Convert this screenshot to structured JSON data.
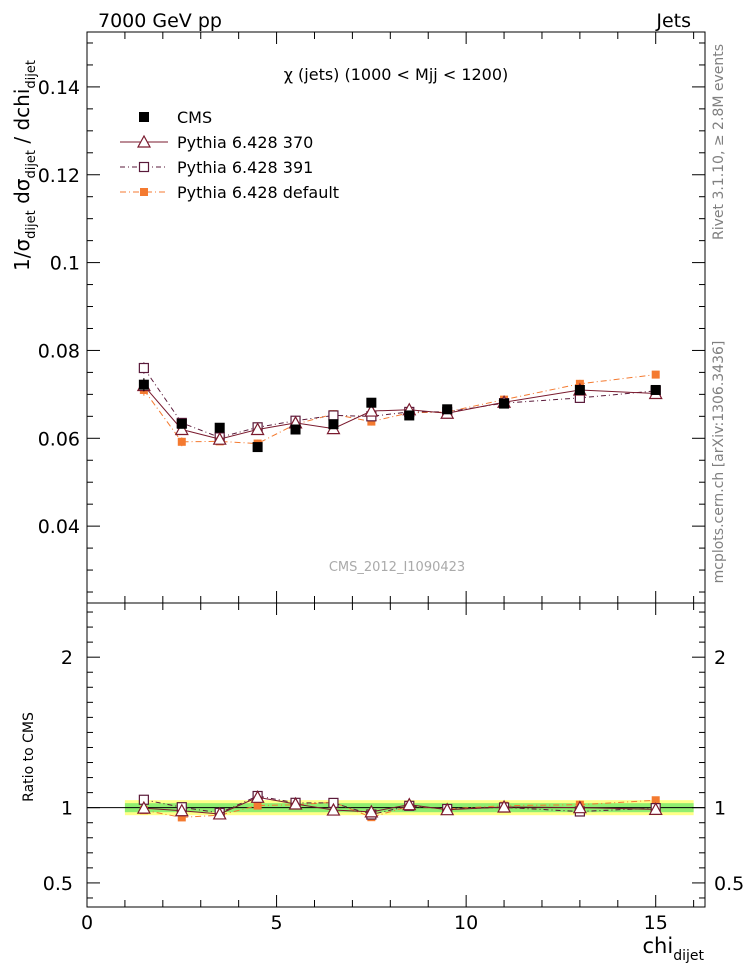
{
  "header": {
    "left": "7000 GeV pp",
    "right": "Jets"
  },
  "side_labels": {
    "rivet": "Rivet 3.1.10, ≥ 2.8M events",
    "mcplots": "mcplots.cern.ch [arXiv:1306.3436]"
  },
  "chart_data": {
    "type": "scatter",
    "title": "χ (jets) (1000 < Mjj < 1200)",
    "watermark": "CMS_2012_I1090423",
    "xlabel": "chi",
    "xlabel_sub": "dijet",
    "ylabel_main": {
      "parts": [
        {
          "t": "1/σ",
          "sub": false
        },
        {
          "t": "dijet",
          "sub": true
        },
        {
          "t": " dσ",
          "sub": false
        },
        {
          "t": "dijet",
          "sub": true
        },
        {
          "t": " / dchi",
          "sub": false
        },
        {
          "t": "dijet",
          "sub": true
        }
      ]
    },
    "ylabel_ratio": "Ratio to CMS",
    "xlim": [
      0,
      16.3
    ],
    "ylim_main": [
      0.0225,
      0.1525
    ],
    "ylim_ratio": [
      0.34,
      2.36
    ],
    "xticks": [
      0,
      5,
      10,
      15
    ],
    "yticks_main": [
      0.04,
      0.06,
      0.08,
      0.1,
      0.12,
      0.14
    ],
    "yticks_main_labels": [
      "0.04",
      "0.06",
      "0.08",
      "0.1",
      "0.12",
      "0.14"
    ],
    "yticks_ratio": [
      0.5,
      1,
      2
    ],
    "yticks_ratio_labels": [
      "0.5",
      "1",
      "2"
    ],
    "ratio_band": {
      "x": [
        1,
        16
      ],
      "inner": [
        0.97,
        1.03
      ],
      "outer": [
        0.95,
        1.05
      ]
    },
    "colors": {
      "cms": "#000000",
      "p370": "#7a1a2e",
      "p391": "#5a1a3a",
      "pdef": "#f47a30",
      "band_inner": "#90ee70",
      "band_outer": "#ffff88"
    },
    "x": [
      1.5,
      2.5,
      3.5,
      4.5,
      5.5,
      6.5,
      7.5,
      8.5,
      9.5,
      11,
      13,
      15
    ],
    "series": [
      {
        "name": "CMS",
        "key": "cms",
        "values": [
          0.0722,
          0.0633,
          0.0624,
          0.058,
          0.062,
          0.0632,
          0.0681,
          0.0652,
          0.0666,
          0.0679,
          0.071,
          0.071
        ],
        "errors": [
          0.0015,
          0.0008,
          0.0007,
          0.0007,
          0.0007,
          0.0007,
          0.0007,
          0.0007,
          0.0007,
          0.0006,
          0.0006,
          0.0006
        ]
      },
      {
        "name": "Pythia 6.428 370",
        "key": "p370",
        "values": [
          0.072,
          0.062,
          0.0598,
          0.062,
          0.0635,
          0.0622,
          0.0662,
          0.0665,
          0.0657,
          0.0682,
          0.071,
          0.0702
        ],
        "errors": [
          0.0013,
          0.001,
          0.0008,
          0.0009,
          0.0009,
          0.0009,
          0.0009,
          0.001,
          0.0008,
          0.0008,
          0.0009,
          0.0008
        ]
      },
      {
        "name": "Pythia 6.428 391",
        "key": "p391",
        "values": [
          0.076,
          0.0635,
          0.0602,
          0.0625,
          0.064,
          0.0652,
          0.065,
          0.066,
          0.066,
          0.068,
          0.0692,
          0.0708
        ],
        "errors": [
          0.0013,
          0.001,
          0.0008,
          0.0009,
          0.0009,
          0.0009,
          0.0009,
          0.001,
          0.0008,
          0.0008,
          0.0009,
          0.0008
        ]
      },
      {
        "name": "Pythia 6.428 default",
        "key": "pdef",
        "values": [
          0.071,
          0.0592,
          0.0593,
          0.0588,
          0.0632,
          0.0655,
          0.0638,
          0.0658,
          0.066,
          0.0688,
          0.0724,
          0.0745
        ],
        "errors": [
          0.0013,
          0.001,
          0.0008,
          0.0009,
          0.0009,
          0.0009,
          0.0009,
          0.001,
          0.0008,
          0.0008,
          0.0009,
          0.0008
        ]
      }
    ]
  }
}
